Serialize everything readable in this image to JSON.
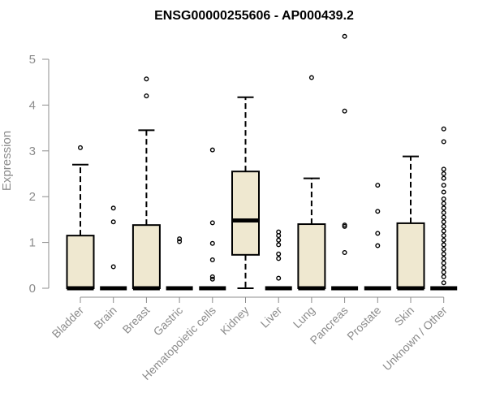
{
  "chart_data": {
    "type": "boxplot",
    "title": "ENSG00000255606 - AP000439.2",
    "ylabel": "Expression",
    "xlabel": "",
    "ylim": [
      0,
      5.5
    ],
    "yticks": [
      "0",
      "1",
      "2",
      "3",
      "4",
      "5"
    ],
    "box_fill": "#efe8d0",
    "categories": [
      "Bladder",
      "Brain",
      "Breast",
      "Gastric",
      "Hematopoietic cells",
      "Kidney",
      "Liver",
      "Lung",
      "Pancreas",
      "Prostate",
      "Skin",
      "Unknown / Other"
    ],
    "boxes": [
      {
        "q1": 0,
        "median": 0,
        "q3": 1.15,
        "whisker_low": 0,
        "whisker_high": 2.7,
        "outliers": [
          3.07
        ]
      },
      {
        "q1": 0,
        "median": 0,
        "q3": 0,
        "whisker_low": 0,
        "whisker_high": 0,
        "outliers": [
          0.47,
          1.45,
          1.75
        ]
      },
      {
        "q1": 0,
        "median": 0,
        "q3": 1.38,
        "whisker_low": 0,
        "whisker_high": 3.45,
        "outliers": [
          4.2,
          4.57
        ]
      },
      {
        "q1": 0,
        "median": 0,
        "q3": 0,
        "whisker_low": 0,
        "whisker_high": 0,
        "outliers": [
          1.02,
          1.08
        ]
      },
      {
        "q1": 0,
        "median": 0,
        "q3": 0,
        "whisker_low": 0,
        "whisker_high": 0,
        "outliers": [
          0.2,
          0.25,
          0.62,
          0.98,
          1.43,
          3.02
        ]
      },
      {
        "q1": 0.73,
        "median": 1.48,
        "q3": 2.55,
        "whisker_low": 0,
        "whisker_high": 4.17,
        "outliers": []
      },
      {
        "q1": 0,
        "median": 0,
        "q3": 0,
        "whisker_low": 0,
        "whisker_high": 0,
        "outliers": [
          0.22,
          0.65,
          0.75,
          0.95,
          1.05,
          1.15,
          1.23
        ]
      },
      {
        "q1": 0,
        "median": 0,
        "q3": 1.4,
        "whisker_low": 0,
        "whisker_high": 2.4,
        "outliers": [
          4.6
        ]
      },
      {
        "q1": 0,
        "median": 0,
        "q3": 0,
        "whisker_low": 0,
        "whisker_high": 0,
        "outliers": [
          0.78,
          1.35,
          1.38,
          3.87,
          5.5
        ]
      },
      {
        "q1": 0,
        "median": 0,
        "q3": 0,
        "whisker_low": 0,
        "whisker_high": 0,
        "outliers": [
          0.93,
          1.2,
          1.68,
          2.25
        ]
      },
      {
        "q1": 0,
        "median": 0,
        "q3": 1.42,
        "whisker_low": 0,
        "whisker_high": 2.88,
        "outliers": []
      },
      {
        "q1": 0,
        "median": 0,
        "q3": 0,
        "whisker_low": 0,
        "whisker_high": 0,
        "outliers": [
          0.12,
          0.25,
          0.35,
          0.45,
          0.55,
          0.65,
          0.75,
          0.85,
          0.95,
          1.05,
          1.15,
          1.25,
          1.35,
          1.45,
          1.55,
          1.65,
          1.75,
          1.85,
          1.95,
          2.1,
          2.25,
          2.4,
          2.5,
          2.6,
          3.2,
          3.48
        ]
      }
    ]
  }
}
